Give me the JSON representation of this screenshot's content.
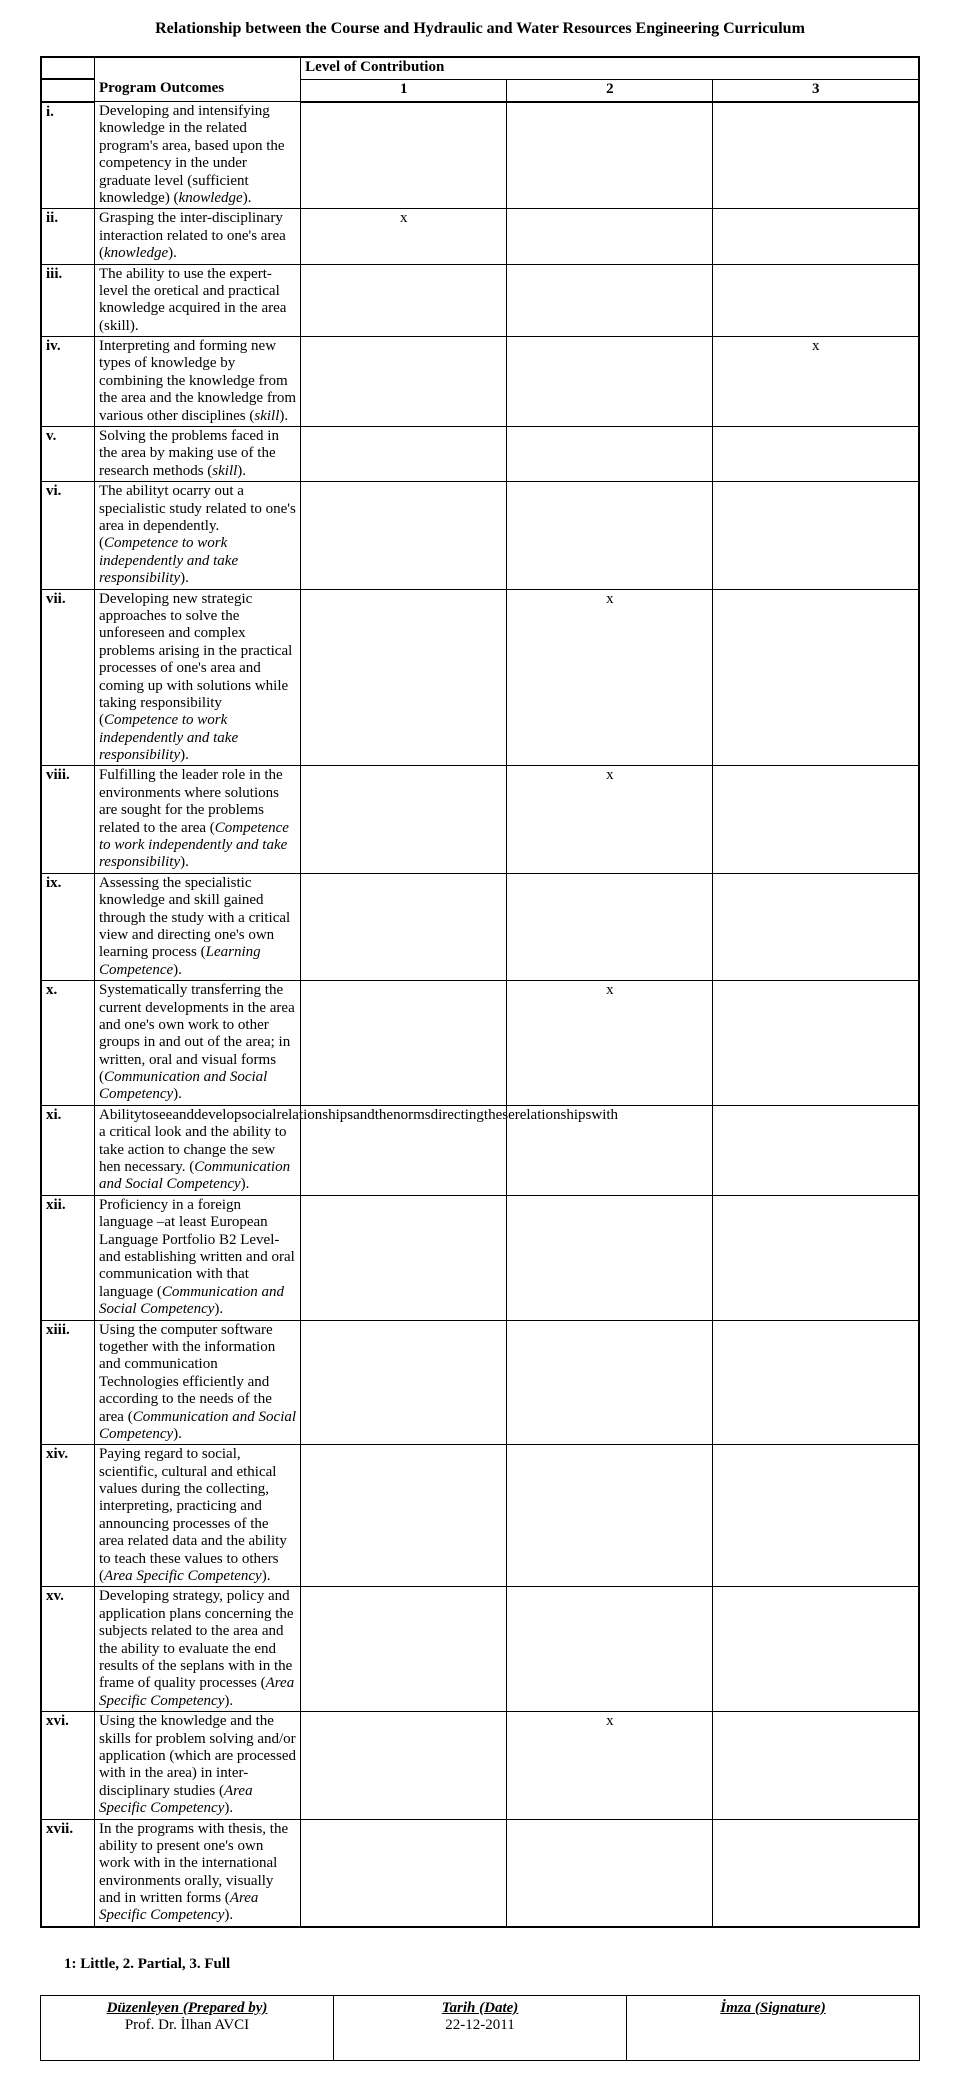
{
  "title": "Relationship between the Course and Hydraulic and Water Resources Engineering Curriculum",
  "header": {
    "programOutcomes": "Program Outcomes",
    "levelOfContribution": "Level of Contribution",
    "c1": "1",
    "c2": "2",
    "c3": "3"
  },
  "rows": [
    {
      "num": "i.",
      "html": "Developing and intensifying knowledge in the related program's area, based upon the competency in the under graduate level (sufficient knowledge) (<span class='italic'>knowledge</span>).",
      "c1": "",
      "c2": "",
      "c3": ""
    },
    {
      "num": "ii.",
      "html": "Grasping the inter-disciplinary interaction related to one's area (<span class='italic'>knowledge</span>).",
      "c1": "x",
      "c2": "",
      "c3": ""
    },
    {
      "num": "iii.",
      "html": "The ability to use the expert-level the oretical and practical knowledge acquired in the area (skill).",
      "c1": "",
      "c2": "",
      "c3": ""
    },
    {
      "num": "iv.",
      "html": "Interpreting and forming new types of knowledge by combining the knowledge from the area and the knowledge from various other disciplines (<span class='italic'>skill</span>).",
      "c1": "",
      "c2": "",
      "c3": "x"
    },
    {
      "num": "v.",
      "html": "Solving the problems faced in the area by making use of the research methods (<span class='italic'>skill</span>).",
      "c1": "",
      "c2": "",
      "c3": ""
    },
    {
      "num": "vi.",
      "html": "The abilityt ocarry out a specialistic study related to one's area in dependently. (<span class='italic'>Competence to work independently and take responsibility</span>).",
      "c1": "",
      "c2": "",
      "c3": ""
    },
    {
      "num": "vii.",
      "html": "Developing new strategic approaches to solve the unforeseen and complex problems arising in the practical processes of one's area and coming up with solutions while taking responsibility (<span class='italic'>Competence to work independently and take responsibility</span>).",
      "c1": "",
      "c2": "x",
      "c3": ""
    },
    {
      "num": "viii.",
      "html": "Fulfilling the leader role in the environments where solutions are sought for the problems related to the area (<span class='italic'>Competence to work independently and take responsibility</span>).",
      "c1": "",
      "c2": "x",
      "c3": ""
    },
    {
      "num": "ix.",
      "html": "Assessing the specialistic knowledge and skill gained through the study with a critical view and directing one's own learning process (<span class='italic'>Learning Competence</span>).",
      "c1": "",
      "c2": "",
      "c3": ""
    },
    {
      "num": "x.",
      "html": "Systematically transferring the current developments in the area and one's own work to other groups in and out of the area; in written, oral and visual forms (<span class='italic'>Communication and Social Competency</span>).",
      "c1": "",
      "c2": "x",
      "c3": ""
    },
    {
      "num": "xi.",
      "html": "Abilitytoseeanddevelopsocialrelationshipsandthenormsdirectingtheserelationshipswith a critical look and the ability to take action to change the sew hen necessary. (<span class='italic'>Communication and Social Competency</span>).",
      "c1": "",
      "c2": "",
      "c3": ""
    },
    {
      "num": "xii.",
      "html": "Proficiency in a foreign language –at least European Language Portfolio B2 Level- and establishing written and oral communication with that language (<span class='italic'>Communication and Social Competency</span>).",
      "c1": "",
      "c2": "",
      "c3": ""
    },
    {
      "num": "xiii.",
      "html": "Using the computer software together with the information and communication Technologies efficiently and according to the needs of the area (<span class='italic'>Communication and Social Competency</span>).",
      "c1": "",
      "c2": "",
      "c3": ""
    },
    {
      "num": "xiv.",
      "html": "Paying regard to social, scientific, cultural and ethical values during the collecting, interpreting, practicing and announcing processes of the area related data and the ability to teach these values to others (<span class='italic'>Area Specific Competency</span>).",
      "c1": "",
      "c2": "",
      "c3": ""
    },
    {
      "num": "xv.",
      "html": "Developing strategy, policy and application plans concerning the subjects related to the area and the ability to evaluate the end results of the seplans with in the frame of quality processes (<span class='italic'>Area Specific Competency</span>).",
      "c1": "",
      "c2": "",
      "c3": ""
    },
    {
      "num": "xvi.",
      "html": "Using the knowledge and the skills for problem solving and/or application (which are processed with in the area) in inter-disciplinary studies (<span class='italic'>Area Specific Competency</span>).",
      "c1": "",
      "c2": "x",
      "c3": ""
    },
    {
      "num": "xvii.",
      "html": "In the programs with thesis, the ability to present one's own work with in the international environments orally, visually and in written forms (<span class='italic'>Area Specific Competency</span>).",
      "c1": "",
      "c2": "",
      "c3": ""
    }
  ],
  "legend": "1: Little, 2. Partial, 3. Full",
  "signature": {
    "preparedByLabel": "Düzenleyen (Prepared by)",
    "preparedByValue": "Prof. Dr. İlhan AVCI",
    "dateLabel": "Tarih (Date)",
    "dateValue": "22-12-2011",
    "signatureLabel": "İmza (Signature)",
    "signatureValue": ""
  }
}
